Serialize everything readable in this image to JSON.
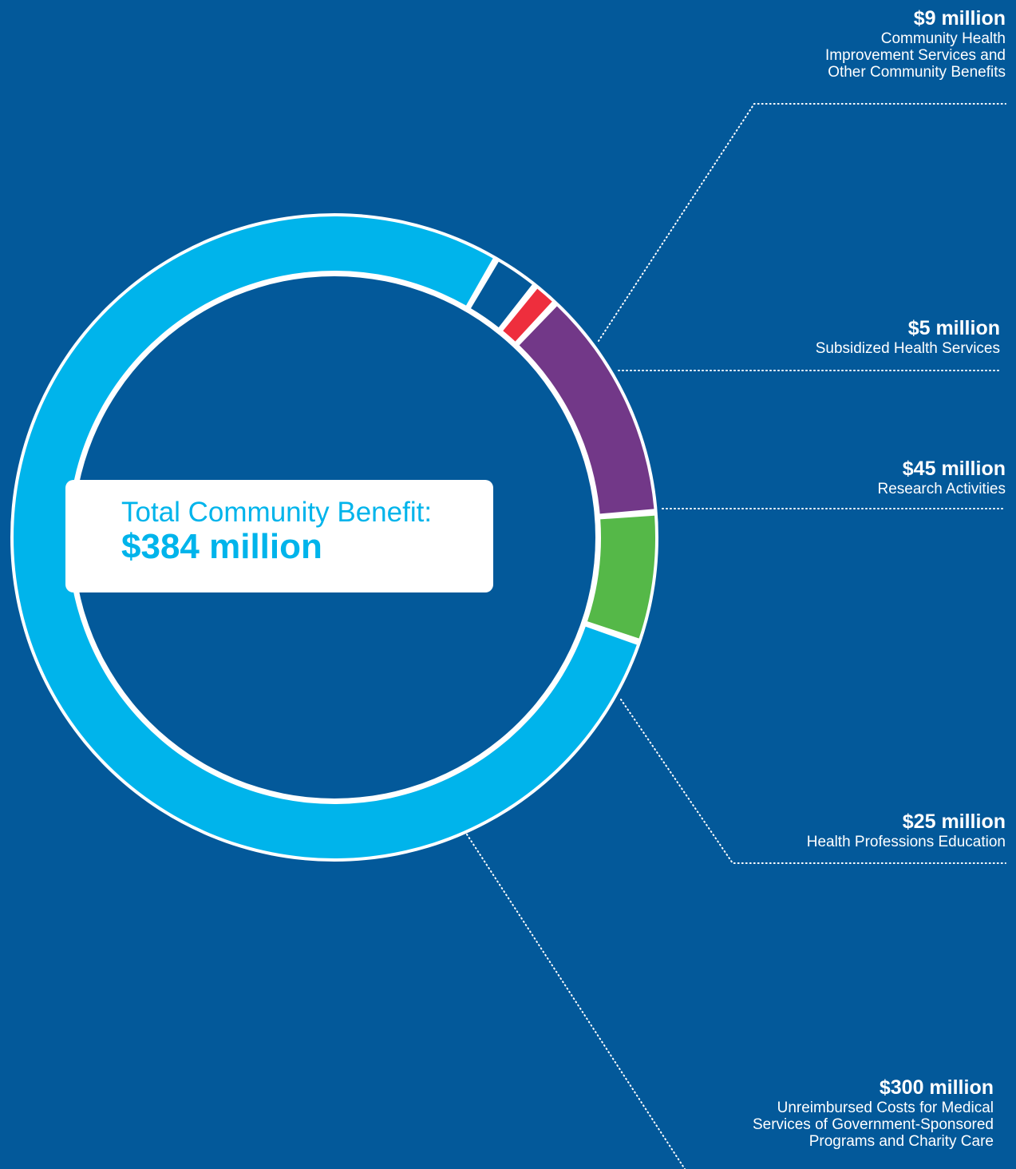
{
  "chart_data": {
    "type": "pie",
    "variant": "donut",
    "title": "",
    "center_label": "Total Community Benefit:",
    "center_value": "$384 million",
    "total": 384,
    "unit": "million",
    "start_angle_deg": 30.2,
    "slices": [
      {
        "id": "community-health",
        "amount_label": "$9 million",
        "value": 9,
        "desc_lines": [
          "Community Health",
          "Improvement Services and",
          "Other Community Benefits"
        ],
        "color": "#03599a"
      },
      {
        "id": "subsidized",
        "amount_label": "$5 million",
        "value": 5,
        "desc_lines": [
          "Subsidized Health Services"
        ],
        "color": "#ee2e3d"
      },
      {
        "id": "research",
        "amount_label": "$45 million",
        "value": 45,
        "desc_lines": [
          "Research Activities"
        ],
        "color": "#723888"
      },
      {
        "id": "education",
        "amount_label": "$25 million",
        "value": 25,
        "desc_lines": [
          "Health Professions Education"
        ],
        "color": "#55b848"
      },
      {
        "id": "unreimbursed",
        "amount_label": "$300 million",
        "value": 300,
        "desc_lines": [
          "Unreimbursed Costs for Medical",
          "Services of Government-Sponsored",
          "Programs and Charity Care"
        ],
        "color": "#00b4eb"
      }
    ],
    "colors": {
      "background": "#03599a",
      "ring_border": "#ffffff",
      "leader": "#ffffff"
    }
  }
}
